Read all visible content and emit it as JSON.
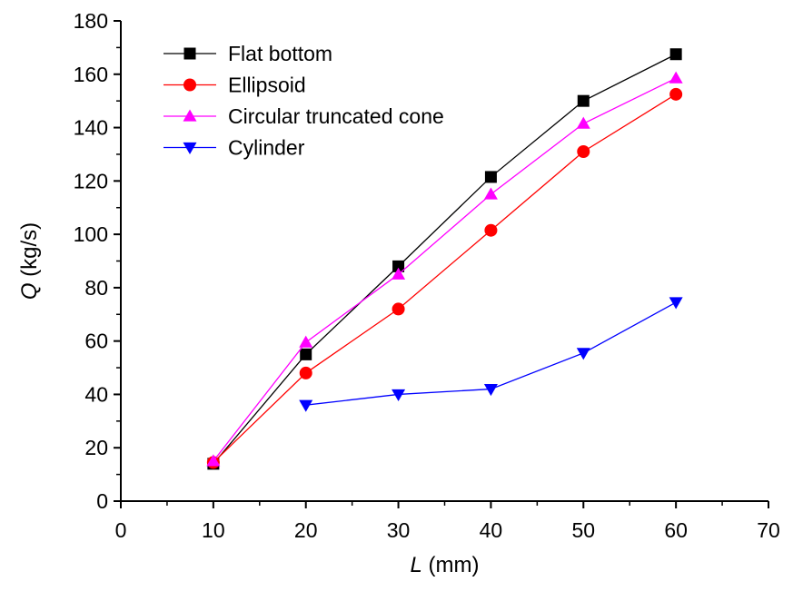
{
  "chart_data": {
    "type": "line",
    "title": "",
    "xlabel": {
      "symbol": "L",
      "unit": " (mm)"
    },
    "ylabel": {
      "symbol": "Q",
      "unit": " (kg/s)"
    },
    "xlim": [
      0,
      70
    ],
    "ylim": [
      0,
      180
    ],
    "xticks": [
      0,
      10,
      20,
      30,
      40,
      50,
      60,
      70
    ],
    "yticks": [
      0,
      20,
      40,
      60,
      80,
      100,
      120,
      140,
      160,
      180
    ],
    "grid": false,
    "legend_position": "top-left",
    "series": [
      {
        "name": "Flat bottom",
        "color": "#000000",
        "marker": "square",
        "x": [
          10,
          20,
          30,
          40,
          50,
          60
        ],
        "y": [
          14,
          55,
          88,
          121.5,
          150,
          167.5
        ]
      },
      {
        "name": "Ellipsoid",
        "color": "#ff0000",
        "marker": "circle",
        "x": [
          10,
          20,
          30,
          40,
          50,
          60
        ],
        "y": [
          14.5,
          48,
          72,
          101.5,
          131,
          152.5
        ]
      },
      {
        "name": "Circular truncated cone",
        "color": "#ff00ff",
        "marker": "triangle-up",
        "x": [
          10,
          20,
          30,
          40,
          50,
          60
        ],
        "y": [
          15,
          59.5,
          85,
          115,
          141.5,
          158.5
        ]
      },
      {
        "name": "Cylinder",
        "color": "#0000ff",
        "marker": "triangle-down",
        "x": [
          20,
          30,
          40,
          50,
          60
        ],
        "y": [
          36,
          40,
          42,
          55.5,
          74.5
        ]
      }
    ]
  }
}
